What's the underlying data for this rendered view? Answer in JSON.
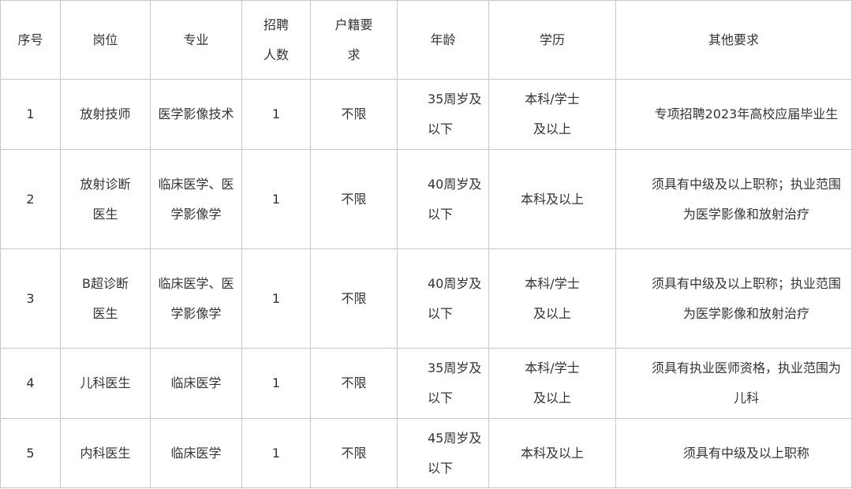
{
  "headers": [
    "序号",
    "岗位",
    "专业",
    "招聘人数",
    "户籍要求",
    "年龄",
    "学历",
    "其他要求"
  ],
  "rows": [
    [
      "1",
      "放射技师",
      "医学影像技术",
      "1",
      "不限",
      "35周岁及以下",
      "本科/学士及以上",
      "专项招聘2023年高校应届毕业生"
    ],
    [
      "2",
      "放射诊断医生",
      "临床医学、医学影像学",
      "1",
      "不限",
      "40周岁及以下",
      "本科及以上",
      "须具有中级及以上职称；执业范围为医学影像和放射治疗"
    ],
    [
      "3",
      "B超诊断医生",
      "临床医学、医学影像学",
      "1",
      "不限",
      "40周岁及以下",
      "本科/学士及以上",
      "须具有中级及以上职称；执业范围为医学影像和放射治疗"
    ],
    [
      "4",
      "儿科医生",
      "临床医学",
      "1",
      "不限",
      "35周岁及以下",
      "本科/学士及以上",
      "须具有执业医师资格，执业范围为儿科"
    ],
    [
      "5",
      "内科医生",
      "临床医学",
      "1",
      "不限",
      "45周岁及以下",
      "本科及以上",
      "须具有中级及以上职称"
    ]
  ]
}
